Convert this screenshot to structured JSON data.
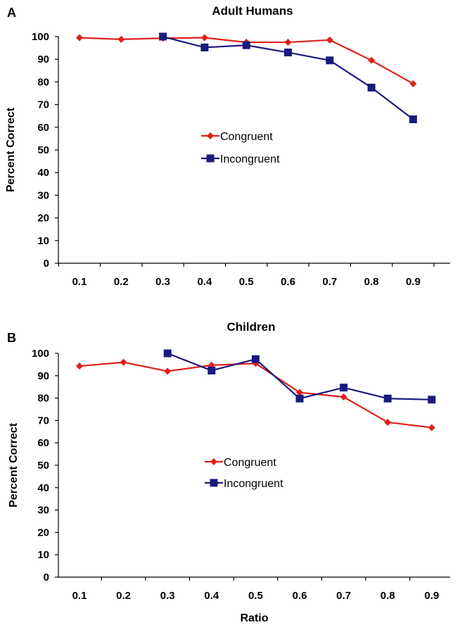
{
  "chart_data": [
    {
      "type": "line",
      "panel": "A",
      "title": "Adult Humans",
      "xlabel": "",
      "ylabel": "Percent Correct",
      "ylim": [
        0,
        100
      ],
      "yticks": [
        "0",
        "10",
        "20",
        "30",
        "40",
        "50",
        "60",
        "70",
        "80",
        "90",
        "100"
      ],
      "categories": [
        "0.1",
        "0.2",
        "0.3",
        "0.4",
        "0.5",
        "0.6",
        "0.7",
        "0.8",
        "0.9"
      ],
      "legend": "center-right",
      "series": [
        {
          "name": "Congruent",
          "color": "#e0201a",
          "marker": "diamond",
          "values": [
            99.5,
            98.8,
            99.3,
            99.5,
            97.5,
            97.5,
            98.5,
            89.5,
            79.2
          ]
        },
        {
          "name": "Incongruent",
          "color": "#1a1a7e",
          "marker": "square",
          "values": [
            null,
            null,
            100,
            95.2,
            96.2,
            93,
            89.5,
            77.5,
            63.5
          ]
        }
      ]
    },
    {
      "type": "line",
      "panel": "B",
      "title": "Children",
      "xlabel": "Ratio",
      "ylabel": "Percent Correct",
      "ylim": [
        0,
        100
      ],
      "yticks": [
        "0",
        "10",
        "20",
        "30",
        "40",
        "50",
        "60",
        "70",
        "80",
        "90",
        "100"
      ],
      "categories": [
        "0.1",
        "0.2",
        "0.3",
        "0.4",
        "0.5",
        "0.6",
        "0.7",
        "0.8",
        "0.9"
      ],
      "legend": "center-right",
      "series": [
        {
          "name": "Congruent",
          "color": "#e0201a",
          "marker": "diamond",
          "values": [
            94.3,
            96,
            92,
            94.7,
            95.5,
            82.5,
            80.5,
            69.2,
            66.8
          ]
        },
        {
          "name": "Incongruent",
          "color": "#1a1a7e",
          "marker": "square",
          "values": [
            null,
            null,
            100,
            92.3,
            97.4,
            79.8,
            84.7,
            79.8,
            79.3
          ]
        }
      ]
    }
  ]
}
